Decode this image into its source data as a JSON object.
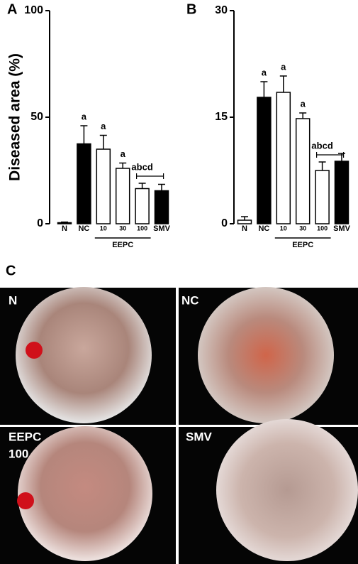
{
  "chart_data": [
    {
      "type": "bar",
      "panel": "A",
      "y_label": "Diseased area (%)",
      "categories": [
        "N",
        "NC",
        "10",
        "30",
        "100",
        "SMV"
      ],
      "values": [
        0.5,
        37.5,
        35,
        26,
        16.5,
        15.5
      ],
      "errors": [
        0.3,
        8.5,
        6.5,
        2.5,
        2.5,
        3
      ],
      "fills": [
        "#000000",
        "#000000",
        "#ffffff",
        "#ffffff",
        "#ffffff",
        "#000000"
      ],
      "sig_labels": [
        null,
        "a",
        "a",
        "a",
        "abcd",
        null
      ],
      "group_label": "EEPC",
      "ylim": [
        0,
        100
      ],
      "yticks": [
        0,
        50,
        100
      ]
    },
    {
      "type": "bar",
      "panel": "B",
      "categories": [
        "N",
        "NC",
        "10",
        "30",
        "100",
        "SMV"
      ],
      "values": [
        0.5,
        17.8,
        18.5,
        14.8,
        7.5,
        8.8
      ],
      "errors": [
        0.5,
        2.2,
        2.3,
        0.8,
        1.2,
        1.1
      ],
      "fills": [
        "#ffffff",
        "#000000",
        "#ffffff",
        "#ffffff",
        "#ffffff",
        "#000000"
      ],
      "sig_labels": [
        null,
        "a",
        "a",
        "a",
        "abcd",
        null
      ],
      "group_label": "EEPC",
      "ylim": [
        0,
        30
      ],
      "yticks": [
        0,
        15,
        30
      ]
    }
  ],
  "panel_c": {
    "panel": "C",
    "photos": [
      {
        "label": [
          "N"
        ]
      },
      {
        "label": [
          "NC"
        ]
      },
      {
        "label": [
          "EEPC",
          "100"
        ]
      },
      {
        "label": [
          "SMV"
        ]
      }
    ]
  }
}
